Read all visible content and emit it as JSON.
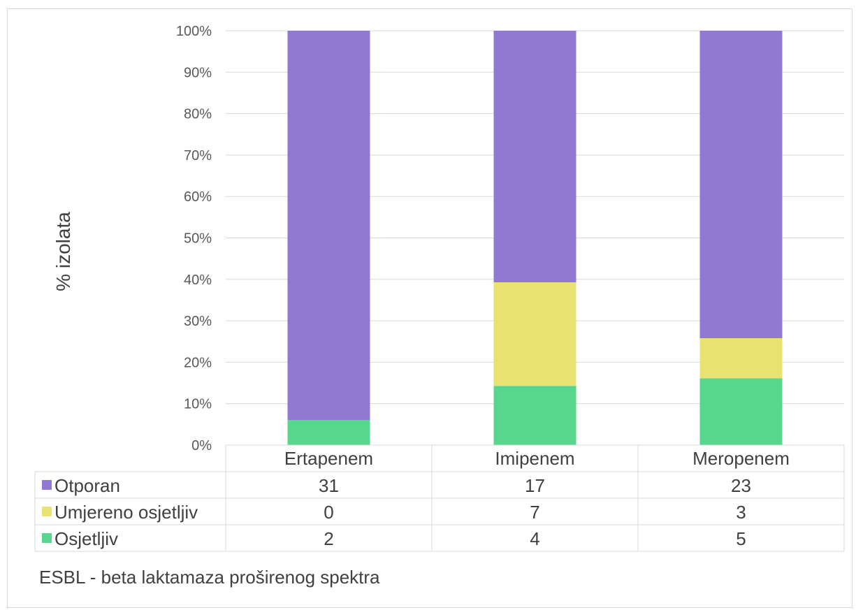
{
  "chart_data": {
    "type": "bar",
    "stacked": true,
    "normalized": true,
    "categories": [
      "Ertapenem",
      "Imipenem",
      "Meropenem"
    ],
    "series": [
      {
        "name": "Osjetljiv",
        "values": [
          2,
          4,
          5
        ],
        "color": "#58d68d"
      },
      {
        "name": "Umjereno osjetljiv",
        "values": [
          0,
          7,
          3
        ],
        "color": "#e8e272"
      },
      {
        "name": "Otporan",
        "values": [
          31,
          17,
          23
        ],
        "color": "#9178d3"
      }
    ],
    "table_order": [
      "Otporan",
      "Umjereno osjetljiv",
      "Osjetljiv"
    ],
    "ylabel": "% izolata",
    "yticks": [
      "0%",
      "10%",
      "20%",
      "30%",
      "40%",
      "50%",
      "60%",
      "70%",
      "80%",
      "90%",
      "100%"
    ],
    "ylim": [
      0,
      100
    ],
    "grid": true,
    "legend": "data-table"
  },
  "note": "ESBL - beta laktamaza proširenog spektra"
}
